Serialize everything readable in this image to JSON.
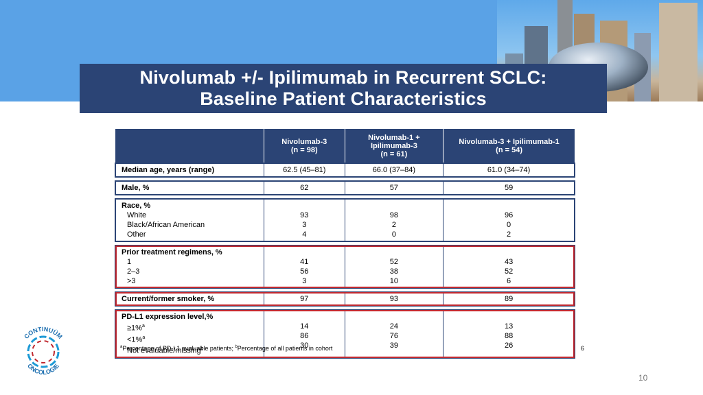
{
  "slide": {
    "title_line1": "Nivolumab +/- Ipilimumab in Recurrent SCLC:",
    "title_line2": "Baseline Patient Characteristics",
    "footnote_a": "Percentage of PD-L1 evaluable patients; ",
    "footnote_b": "Percentage of all patients in cohort",
    "footnote_sup_a": "a",
    "footnote_sup_b": "b",
    "reference": "6",
    "page_number": "10"
  },
  "logo": {
    "top_text": "CONTINUÜM",
    "bottom_text": "ONCOLOGIE",
    "colors": [
      "#1d9ad6",
      "#c0282f"
    ]
  },
  "table": {
    "headers": [
      {
        "line1": "",
        "line2": "",
        "line3": ""
      },
      {
        "line1": "Nivolumab-3",
        "line2": "(n = 98)",
        "line3": ""
      },
      {
        "line1": "Nivolumab-1 +",
        "line2": "Ipilimumab-3",
        "line3": "(n = 61)"
      },
      {
        "line1": "Nivolumab-3 + Ipilimumab-1",
        "line2": "(n = 54)",
        "line3": ""
      }
    ],
    "median_age": {
      "label": "Median age, years (range)",
      "c1": "62.5 (45–81)",
      "c2": "66.0 (37–84)",
      "c3": "61.0 (34–74)"
    },
    "male": {
      "label": "Male, %",
      "c1": "62",
      "c2": "57",
      "c3": "59"
    },
    "race": {
      "label": "Race, %",
      "rows": [
        {
          "label": "White",
          "c1": "93",
          "c2": "98",
          "c3": "96"
        },
        {
          "label": "Black/African American",
          "c1": "3",
          "c2": "2",
          "c3": "0"
        },
        {
          "label": "Other",
          "c1": "4",
          "c2": "0",
          "c3": "2"
        }
      ]
    },
    "prior": {
      "label": "Prior treatment regimens, %",
      "rows": [
        {
          "label": "1",
          "c1": "41",
          "c2": "52",
          "c3": "43"
        },
        {
          "label": "2–3",
          "c1": "56",
          "c2": "38",
          "c3": "52"
        },
        {
          "label": ">3",
          "c1": "3",
          "c2": "10",
          "c3": "6"
        }
      ]
    },
    "smoker": {
      "label": "Current/former smoker, %",
      "c1": "97",
      "c2": "93",
      "c3": "89"
    },
    "pdl1": {
      "label": "PD-L1 expression level,%",
      "rows": [
        {
          "label": "≥1%",
          "sup": "a",
          "c1": "14",
          "c2": "24",
          "c3": "13"
        },
        {
          "label": "<1%",
          "sup": "a",
          "c1": "86",
          "c2": "76",
          "c3": "88"
        },
        {
          "label": "Not evaluable/missing",
          "sup": "b",
          "c1": "30",
          "c2": "39",
          "c3": "26"
        }
      ]
    }
  },
  "colors": {
    "title_bg": "#2b4475",
    "sky": "#5aa2e6",
    "highlight": "#c0282f"
  }
}
